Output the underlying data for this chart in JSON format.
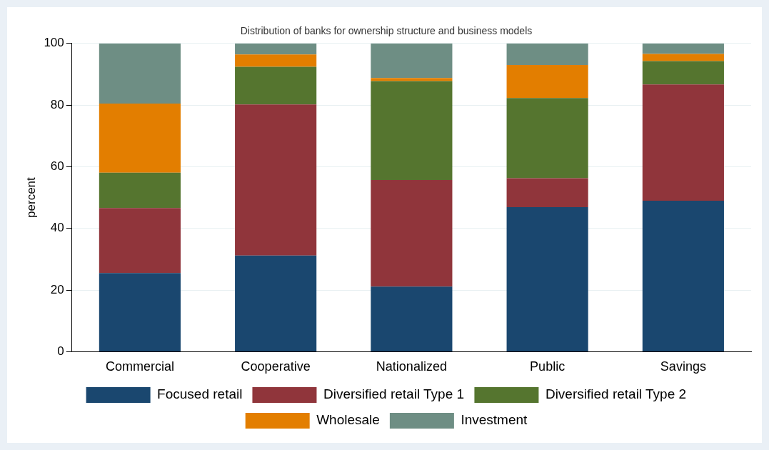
{
  "chart_data": {
    "type": "bar",
    "title": "Distribution of banks for ownership structure and business models",
    "ylabel": "percent",
    "categories": [
      "Commercial",
      "Cooperative",
      "Nationalized",
      "Public",
      "Savings"
    ],
    "stacked": true,
    "ylim": [
      0,
      100
    ],
    "yticks": [
      0,
      20,
      40,
      60,
      80,
      100
    ],
    "grid": "y",
    "legend": "bottom",
    "series": [
      {
        "name": "Focused retail",
        "color": "#1a476f",
        "values": [
          25.5,
          31.2,
          21.1,
          46.9,
          49
        ]
      },
      {
        "name": "Diversified retail Type 1",
        "color": "#90353b",
        "values": [
          21.1,
          49,
          34.6,
          9.4,
          37.7
        ]
      },
      {
        "name": "Diversified retail Type 2",
        "color": "#55752f",
        "values": [
          11.5,
          12.2,
          32.1,
          26,
          7.6
        ]
      },
      {
        "name": "Wholesale",
        "color": "#e37e00",
        "values": [
          22.4,
          4,
          1,
          10.7,
          2.3
        ]
      },
      {
        "name": "Investment",
        "color": "#6e8e84",
        "values": [
          19.5,
          3.6,
          11.2,
          7,
          3.4
        ]
      }
    ]
  }
}
